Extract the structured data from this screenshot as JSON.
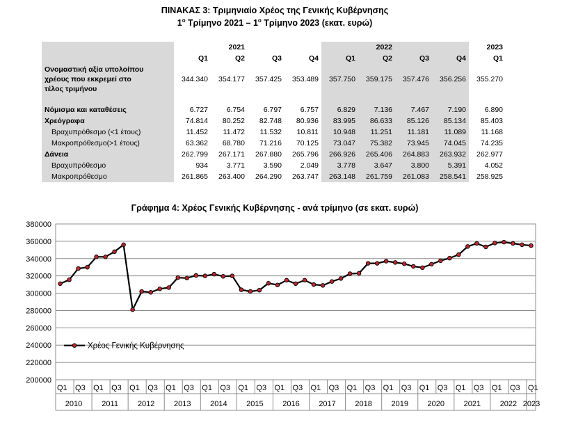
{
  "table": {
    "title_line1": "ΠΙΝΑΚΑΣ 3: Τριμηνιαίο Χρέος της Γενικής Κυβέρνησης",
    "title_line2_a": "1",
    "title_line2_sup1": "ο",
    "title_line2_b": " Τρίμηνο 2021 – 1",
    "title_line2_sup2": "ο",
    "title_line2_c": " Τρίμηνο 2023 (εκατ. ευρώ)",
    "years": [
      "2021",
      "2022",
      "2023"
    ],
    "quarters": [
      "Q1",
      "Q2",
      "Q3",
      "Q4",
      "Q1",
      "Q2",
      "Q3",
      "Q4",
      "Q1"
    ],
    "rows": [
      {
        "label_lines": [
          "Ονομαστική αξία υπολοίπου",
          "χρέους που εκκρεμεί στο",
          "τέλος τριμήνου"
        ],
        "values": [
          "344.340",
          "354.177",
          "357.425",
          "353.489",
          "357.750",
          "359.175",
          "357.476",
          "356.256",
          "355.270"
        ]
      },
      {
        "label": "Νόμισμα και καταθέσεις",
        "values": [
          "6.727",
          "6.754",
          "6.797",
          "6.757",
          "6.829",
          "7.136",
          "7.467",
          "7.190",
          "6.890"
        ]
      },
      {
        "label": "Χρεόγραφα",
        "values": [
          "74.814",
          "80.252",
          "82.748",
          "80.936",
          "83.995",
          "86.633",
          "85.126",
          "85.134",
          "85.403"
        ]
      },
      {
        "label": "Βραχυπρόθεσμο (<1 έτους)",
        "values": [
          "11.452",
          "11.472",
          "11.532",
          "10.811",
          "10.948",
          "11.251",
          "11.181",
          "11.089",
          "11.168"
        ]
      },
      {
        "label": "Μακροπρόθεσμο(>1 έτους)",
        "values": [
          "63.362",
          "68.780",
          "71.216",
          "70.125",
          "73.047",
          "75.382",
          "73.945",
          "74.045",
          "74.235"
        ]
      },
      {
        "label": "Δάνεια",
        "values": [
          "262.799",
          "267.171",
          "267.880",
          "265.796",
          "266.926",
          "265.406",
          "264.883",
          "263.932",
          "262.977"
        ]
      },
      {
        "label": "Βραχυπρόθεσμο",
        "values": [
          "934",
          "3.771",
          "3.590",
          "2.049",
          "3.778",
          "3.647",
          "3.800",
          "5.391",
          "4.052"
        ]
      },
      {
        "label": "Μακροπρόθεσμο",
        "values": [
          "261.865",
          "263.400",
          "264.290",
          "263.747",
          "263.148",
          "261.759",
          "261.083",
          "258.541",
          "258.925"
        ]
      }
    ]
  },
  "chart_data": {
    "type": "line",
    "title": "Γράφημα 4: Χρέος Γενικής Κυβέρνησης - ανά τρίμηνο (σε εκατ. ευρώ)",
    "ylim": [
      200000,
      380000
    ],
    "yticks": [
      "200000",
      "220000",
      "240000",
      "260000",
      "280000",
      "300000",
      "320000",
      "340000",
      "360000",
      "380000"
    ],
    "quarter_labels": [
      "Q1",
      "Q3",
      "Q1",
      "Q3",
      "Q1",
      "Q3",
      "Q1",
      "Q3",
      "Q1",
      "Q3",
      "Q1",
      "Q3",
      "Q1",
      "Q3",
      "Q1",
      "Q3",
      "Q1",
      "Q3",
      "Q1",
      "Q3",
      "Q1",
      "Q3",
      "Q1",
      "Q3",
      "Q1",
      "Q3",
      "Q1"
    ],
    "years": [
      "2010",
      "2011",
      "2012",
      "2013",
      "2014",
      "2015",
      "2016",
      "2017",
      "2018",
      "2019",
      "2020",
      "2021",
      "2022",
      "2023"
    ],
    "grid": true,
    "legend_position": "left-middle",
    "series": [
      {
        "name": "Χρέος Γενικής Κυβέρνησης",
        "color": "#000000",
        "marker_color": "#c0282d",
        "values": [
          311000,
          315500,
          328500,
          330000,
          342000,
          342000,
          348000,
          356000,
          281000,
          302000,
          301000,
          305000,
          306500,
          318000,
          317500,
          320500,
          320000,
          322000,
          319500,
          320000,
          304000,
          302000,
          303500,
          311500,
          309500,
          315000,
          311000,
          315000,
          310000,
          309000,
          313500,
          317000,
          322500,
          323000,
          334500,
          334500,
          337000,
          335500,
          334000,
          331000,
          329500,
          333500,
          337500,
          340500,
          344500,
          354000,
          357500,
          353500,
          358000,
          359000,
          357500,
          356000,
          355000
        ]
      }
    ]
  }
}
